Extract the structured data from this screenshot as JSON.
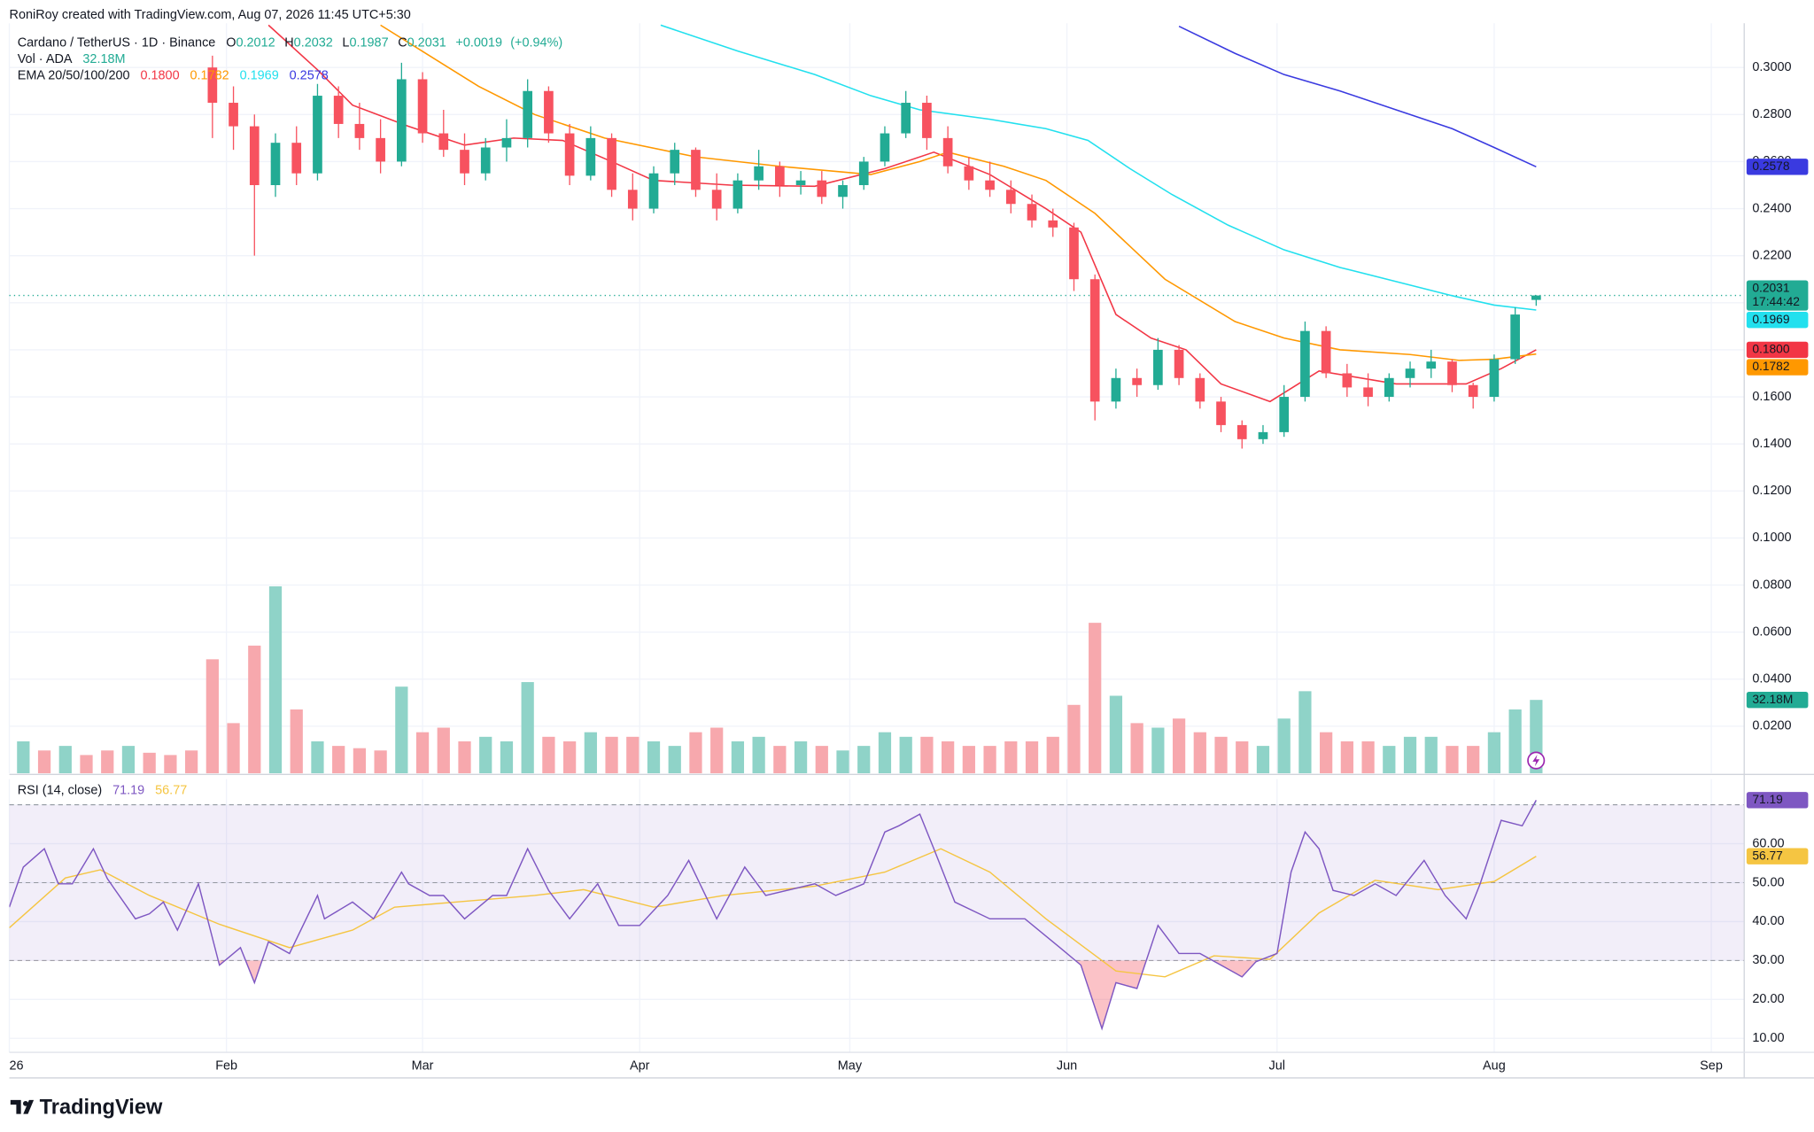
{
  "header": "RoniRoy created with TradingView.com, Aug 07, 2026 11:45 UTC+5:30",
  "logo": "TradingView",
  "chart_data": [
    {
      "type": "candlestick",
      "title": "Cardano / TetherUS · 1D · Binance",
      "legend_fields": [
        "O",
        "H",
        "L",
        "C"
      ],
      "change": {
        "value": 0.0019,
        "label": "+0.0019"
      },
      "change_pct": {
        "value": 0.94,
        "label": "(+0.94%)"
      },
      "countdown": "17:44:42",
      "up_color": "#22ab94",
      "down_color": "#f7525f",
      "x": [
        29,
        32,
        35,
        38,
        41,
        44,
        47,
        50,
        53,
        56,
        59,
        62,
        65,
        68,
        71,
        74,
        77,
        80,
        83,
        86,
        89,
        92,
        95,
        98,
        101,
        104,
        107,
        110,
        113,
        116,
        119,
        122,
        125,
        128,
        131,
        134,
        137,
        140,
        143,
        146,
        149,
        152,
        155,
        158,
        161,
        164,
        167,
        170,
        173,
        176,
        179,
        182,
        185,
        188,
        191,
        194,
        197,
        200,
        203,
        206,
        209,
        212,
        215,
        218
      ],
      "open": [
        0.3,
        0.285,
        0.275,
        0.25,
        0.268,
        0.255,
        0.288,
        0.276,
        0.27,
        0.26,
        0.295,
        0.272,
        0.265,
        0.255,
        0.266,
        0.27,
        0.29,
        0.272,
        0.254,
        0.27,
        0.248,
        0.24,
        0.255,
        0.265,
        0.248,
        0.24,
        0.252,
        0.258,
        0.25,
        0.252,
        0.245,
        0.25,
        0.26,
        0.272,
        0.285,
        0.27,
        0.258,
        0.252,
        0.248,
        0.242,
        0.235,
        0.232,
        0.21,
        0.158,
        0.168,
        0.165,
        0.18,
        0.168,
        0.158,
        0.148,
        0.142,
        0.145,
        0.16,
        0.188,
        0.17,
        0.164,
        0.16,
        0.168,
        0.172,
        0.175,
        0.165,
        0.16,
        0.176,
        0.2012
      ],
      "high": [
        0.305,
        0.292,
        0.28,
        0.272,
        0.275,
        0.293,
        0.292,
        0.285,
        0.278,
        0.302,
        0.298,
        0.282,
        0.272,
        0.27,
        0.278,
        0.295,
        0.292,
        0.276,
        0.275,
        0.272,
        0.255,
        0.258,
        0.268,
        0.266,
        0.255,
        0.255,
        0.265,
        0.26,
        0.256,
        0.256,
        0.252,
        0.262,
        0.275,
        0.29,
        0.288,
        0.275,
        0.262,
        0.26,
        0.252,
        0.246,
        0.24,
        0.234,
        0.212,
        0.172,
        0.172,
        0.185,
        0.182,
        0.17,
        0.16,
        0.15,
        0.148,
        0.165,
        0.192,
        0.19,
        0.174,
        0.17,
        0.17,
        0.175,
        0.18,
        0.176,
        0.166,
        0.178,
        0.198,
        0.2032
      ],
      "low": [
        0.27,
        0.265,
        0.22,
        0.245,
        0.25,
        0.252,
        0.27,
        0.265,
        0.255,
        0.258,
        0.268,
        0.262,
        0.25,
        0.252,
        0.26,
        0.266,
        0.268,
        0.25,
        0.252,
        0.245,
        0.235,
        0.238,
        0.25,
        0.245,
        0.235,
        0.238,
        0.248,
        0.245,
        0.246,
        0.242,
        0.24,
        0.248,
        0.258,
        0.27,
        0.265,
        0.255,
        0.248,
        0.245,
        0.238,
        0.232,
        0.228,
        0.205,
        0.15,
        0.155,
        0.16,
        0.163,
        0.165,
        0.155,
        0.145,
        0.138,
        0.14,
        0.143,
        0.158,
        0.168,
        0.16,
        0.156,
        0.158,
        0.164,
        0.168,
        0.162,
        0.155,
        0.158,
        0.174,
        0.1987
      ],
      "close": [
        0.285,
        0.275,
        0.25,
        0.268,
        0.255,
        0.288,
        0.276,
        0.27,
        0.26,
        0.295,
        0.272,
        0.265,
        0.255,
        0.266,
        0.27,
        0.29,
        0.272,
        0.254,
        0.27,
        0.248,
        0.24,
        0.255,
        0.265,
        0.248,
        0.24,
        0.252,
        0.258,
        0.25,
        0.252,
        0.245,
        0.25,
        0.26,
        0.272,
        0.285,
        0.27,
        0.258,
        0.252,
        0.248,
        0.242,
        0.235,
        0.232,
        0.21,
        0.158,
        0.168,
        0.165,
        0.18,
        0.168,
        0.158,
        0.148,
        0.142,
        0.145,
        0.16,
        0.188,
        0.17,
        0.164,
        0.16,
        0.168,
        0.172,
        0.175,
        0.165,
        0.16,
        0.176,
        0.195,
        0.2031
      ],
      "xlim": [
        0,
        247.7
      ],
      "xticks": [
        {
          "value": 0,
          "label": "26"
        },
        {
          "value": 31,
          "label": "Feb"
        },
        {
          "value": 59,
          "label": "Mar"
        },
        {
          "value": 90,
          "label": "Apr"
        },
        {
          "value": 120,
          "label": "May"
        },
        {
          "value": 151,
          "label": "Jun"
        },
        {
          "value": 181,
          "label": "Jul"
        },
        {
          "value": 212,
          "label": "Aug"
        },
        {
          "value": 243,
          "label": "Sep"
        }
      ],
      "ylim": [
        0,
        0.3188
      ],
      "yticks": [
        {
          "value": 0.02,
          "label": "0.0200"
        },
        {
          "value": 0.04,
          "label": "0.0400"
        },
        {
          "value": 0.06,
          "label": "0.0600"
        },
        {
          "value": 0.08,
          "label": "0.0800"
        },
        {
          "value": 0.1,
          "label": "0.1000"
        },
        {
          "value": 0.12,
          "label": "0.1200"
        },
        {
          "value": 0.14,
          "label": "0.1400"
        },
        {
          "value": 0.16,
          "label": "0.1600"
        },
        {
          "value": 0.18,
          "label": "0.1800"
        },
        {
          "value": 0.2,
          "label": "0.2000"
        },
        {
          "value": 0.22,
          "label": "0.2200"
        },
        {
          "value": 0.24,
          "label": "0.2400"
        },
        {
          "value": 0.26,
          "label": "0.2600"
        },
        {
          "value": 0.28,
          "label": "0.2800"
        },
        {
          "value": 0.3,
          "label": "0.3000"
        }
      ],
      "grid": true,
      "overlays": {
        "title": "EMA 20/50/100/200",
        "series": [
          {
            "color": "#f23645",
            "last_label": "0.1800",
            "x": [
              37,
              44,
              49,
              57,
              65,
              72,
              79,
              86,
              92,
              103,
              115,
              125,
              132,
              140,
              148,
              153,
              158,
              163,
              168,
              173,
              180,
              187,
              198,
              208,
              213,
              218
            ],
            "values": [
              0.318,
              0.299,
              0.284,
              0.275,
              0.267,
              0.27,
              0.269,
              0.26,
              0.252,
              0.25,
              0.2495,
              0.257,
              0.264,
              0.2545,
              0.24,
              0.23,
              0.195,
              0.185,
              0.18,
              0.1655,
              0.158,
              0.171,
              0.1655,
              0.1655,
              0.172,
              0.18
            ]
          },
          {
            "color": "#ff9800",
            "last_label": "0.1782",
            "x": [
              53,
              60,
              67,
              75,
              85,
              98,
              110,
              123,
              130,
              134,
              142,
              148,
              155,
              165,
              175,
              182,
              190,
              200,
              207,
              212,
              218
            ],
            "values": [
              0.318,
              0.305,
              0.292,
              0.28,
              0.27,
              0.262,
              0.258,
              0.2545,
              0.26,
              0.264,
              0.258,
              0.252,
              0.238,
              0.21,
              0.192,
              0.185,
              0.18,
              0.178,
              0.1755,
              0.176,
              0.1782
            ]
          },
          {
            "color": "#22e0ee",
            "last_label": "0.1969",
            "x": [
              93,
              104,
              115,
              123,
              130,
              140,
              148,
              154,
              160,
              166,
              174,
              182,
              190,
              198,
              206,
              212,
              218
            ],
            "values": [
              0.318,
              0.307,
              0.297,
              0.288,
              0.282,
              0.278,
              0.274,
              0.269,
              0.257,
              0.246,
              0.233,
              0.2225,
              0.215,
              0.209,
              0.203,
              0.199,
              0.1969
            ]
          },
          {
            "color": "#3a3ae0",
            "last_label": "0.2578",
            "x": [
              167,
              175,
              182,
              190,
              198,
              206,
              212,
              218
            ],
            "values": [
              0.3175,
              0.306,
              0.297,
              0.29,
              0.282,
              0.274,
              0.266,
              0.2578
            ]
          }
        ]
      }
    },
    {
      "type": "bar",
      "title": "Vol · ADA",
      "ylim": [
        0,
        329
      ],
      "series": [
        {
          "color": "#8fd3c8",
          "last_label": "32.18M",
          "x": [
            2,
            8,
            17,
            38,
            44,
            56,
            68,
            71,
            74,
            83,
            92,
            95,
            104,
            107,
            113,
            119,
            122,
            125,
            128,
            158,
            164,
            179,
            182,
            185,
            197,
            200,
            203,
            212,
            215,
            218
          ],
          "values": [
            14,
            12,
            12,
            82,
            14,
            38,
            16,
            14,
            40,
            18,
            14,
            12,
            14,
            16,
            14,
            10,
            12,
            18,
            16,
            34,
            20,
            12,
            24,
            36,
            12,
            16,
            16,
            18,
            28,
            32.18
          ]
        },
        {
          "color": "#f7a8ad",
          "x": [
            5,
            11,
            14,
            20,
            23,
            26,
            29,
            32,
            35,
            41,
            47,
            50,
            53,
            59,
            62,
            65,
            77,
            80,
            86,
            89,
            98,
            101,
            110,
            116,
            131,
            134,
            137,
            140,
            143,
            146,
            149,
            152,
            155,
            161,
            167,
            170,
            173,
            176,
            188,
            191,
            194,
            206,
            209
          ],
          "values": [
            10,
            8,
            10,
            9,
            8,
            10,
            50,
            22,
            56,
            28,
            12,
            11,
            10,
            18,
            20,
            14,
            16,
            14,
            16,
            16,
            18,
            20,
            12,
            12,
            16,
            14,
            12,
            12,
            14,
            14,
            16,
            30,
            66,
            22,
            24,
            18,
            16,
            14,
            18,
            14,
            14,
            12,
            12
          ]
        }
      ]
    },
    {
      "type": "line",
      "title": "RSI (14, close)",
      "ylim": [
        6.4,
        76.6
      ],
      "yticks": [
        {
          "value": 10,
          "label": "10.00"
        },
        {
          "value": 20,
          "label": "20.00"
        },
        {
          "value": 30,
          "label": "30.00"
        },
        {
          "value": 40,
          "label": "40.00"
        },
        {
          "value": 50,
          "label": "50.00"
        },
        {
          "value": 60,
          "label": "60.00"
        }
      ],
      "bands": [
        70,
        50,
        30
      ],
      "band_color": "#7e57c2",
      "oversold_color": "#f23645",
      "overbought_color": "#22ab94",
      "series": [
        {
          "color": "#7e57c2",
          "x": [
            0,
            2,
            5,
            7,
            9,
            12,
            14,
            18,
            20,
            22,
            24,
            27,
            30,
            33,
            35,
            37,
            40,
            44,
            45,
            49,
            52,
            54,
            56,
            57,
            60,
            62,
            65,
            69,
            71,
            74,
            77,
            80,
            84,
            87,
            90,
            94,
            97,
            101,
            105,
            108,
            115,
            118,
            122,
            125,
            127,
            130,
            132,
            135,
            140,
            145,
            150,
            153,
            156,
            158,
            161,
            164,
            167,
            170,
            173,
            176,
            178,
            181,
            183,
            185,
            187,
            189,
            192,
            195,
            198,
            202,
            205,
            208,
            210,
            213,
            216,
            218
          ],
          "values": [
            43.7,
            54,
            58.7,
            49.7,
            49.7,
            58.7,
            51,
            40.7,
            42,
            45,
            37.8,
            49.7,
            28.8,
            33.3,
            24.3,
            34.8,
            31.8,
            46.7,
            40.7,
            45,
            40.7,
            46.7,
            52.7,
            49.7,
            46.7,
            46.7,
            40.7,
            46.7,
            46.7,
            58.7,
            48,
            40.7,
            49.7,
            39,
            39,
            46.7,
            55.7,
            40.7,
            54,
            46.7,
            49.7,
            46.7,
            49.7,
            63,
            64.6,
            67.6,
            58.7,
            45,
            40.7,
            40.7,
            33.3,
            28.8,
            12.5,
            24.3,
            22.8,
            39,
            31.8,
            31.8,
            28.8,
            25.8,
            29.7,
            31.8,
            52.7,
            63,
            58.7,
            48,
            46.7,
            49.7,
            46.7,
            55.7,
            46.7,
            40.7,
            49.7,
            66,
            64.6,
            71.19
          ]
        },
        {
          "color": "#f5c542",
          "x": [
            0,
            8,
            13,
            20,
            30,
            40,
            49,
            55,
            65,
            75,
            82,
            92,
            102,
            115,
            125,
            133,
            140,
            148,
            158,
            165,
            172,
            180,
            187,
            195,
            204,
            212,
            218
          ],
          "values": [
            38.4,
            51.2,
            53.3,
            46.7,
            39.3,
            33.3,
            37.8,
            43.7,
            45.2,
            46.7,
            48.2,
            43.7,
            46.7,
            49.1,
            52.7,
            58.7,
            52.7,
            40.7,
            27.3,
            25.8,
            31.2,
            30.3,
            42.2,
            50.6,
            48.2,
            50.3,
            56.77
          ]
        }
      ]
    }
  ]
}
